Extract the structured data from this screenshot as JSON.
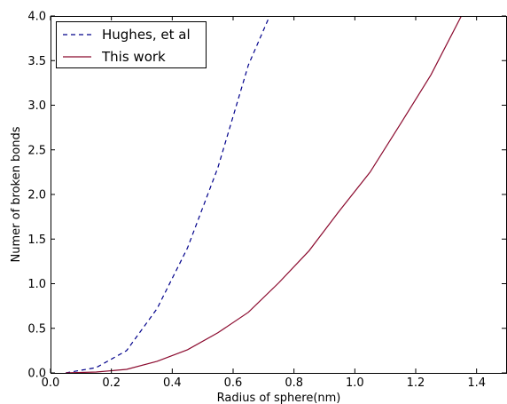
{
  "chart_data": {
    "type": "line",
    "xlabel": "Radius of sphere(nm)",
    "ylabel": "Numer of broken bonds",
    "xlim": [
      0.0,
      1.5
    ],
    "ylim": [
      0.0,
      4.0
    ],
    "x_ticks": [
      "0.0",
      "0.2",
      "0.4",
      "0.6",
      "0.8",
      "1.0",
      "1.2",
      "1.4"
    ],
    "y_ticks": [
      "0.0",
      "0.5",
      "1.0",
      "1.5",
      "2.0",
      "2.5",
      "3.0",
      "3.5",
      "4.0"
    ],
    "grid": false,
    "legend_position": "top-left",
    "series": [
      {
        "name": "Hughes, et al",
        "color": "#00008b",
        "style": "dashed",
        "x": [
          0.05,
          0.15,
          0.25,
          0.35,
          0.45,
          0.55,
          0.65,
          0.72
        ],
        "y": [
          0.0,
          0.06,
          0.25,
          0.72,
          1.4,
          2.3,
          3.45,
          4.0
        ]
      },
      {
        "name": "This work",
        "color": "#8b0a2e",
        "style": "solid",
        "x": [
          0.05,
          0.15,
          0.25,
          0.35,
          0.45,
          0.55,
          0.65,
          0.75,
          0.85,
          0.95,
          1.05,
          1.15,
          1.25,
          1.35
        ],
        "y": [
          0.0,
          0.01,
          0.04,
          0.13,
          0.26,
          0.45,
          0.68,
          1.01,
          1.37,
          1.82,
          2.25,
          2.79,
          3.34,
          4.0
        ]
      }
    ]
  }
}
